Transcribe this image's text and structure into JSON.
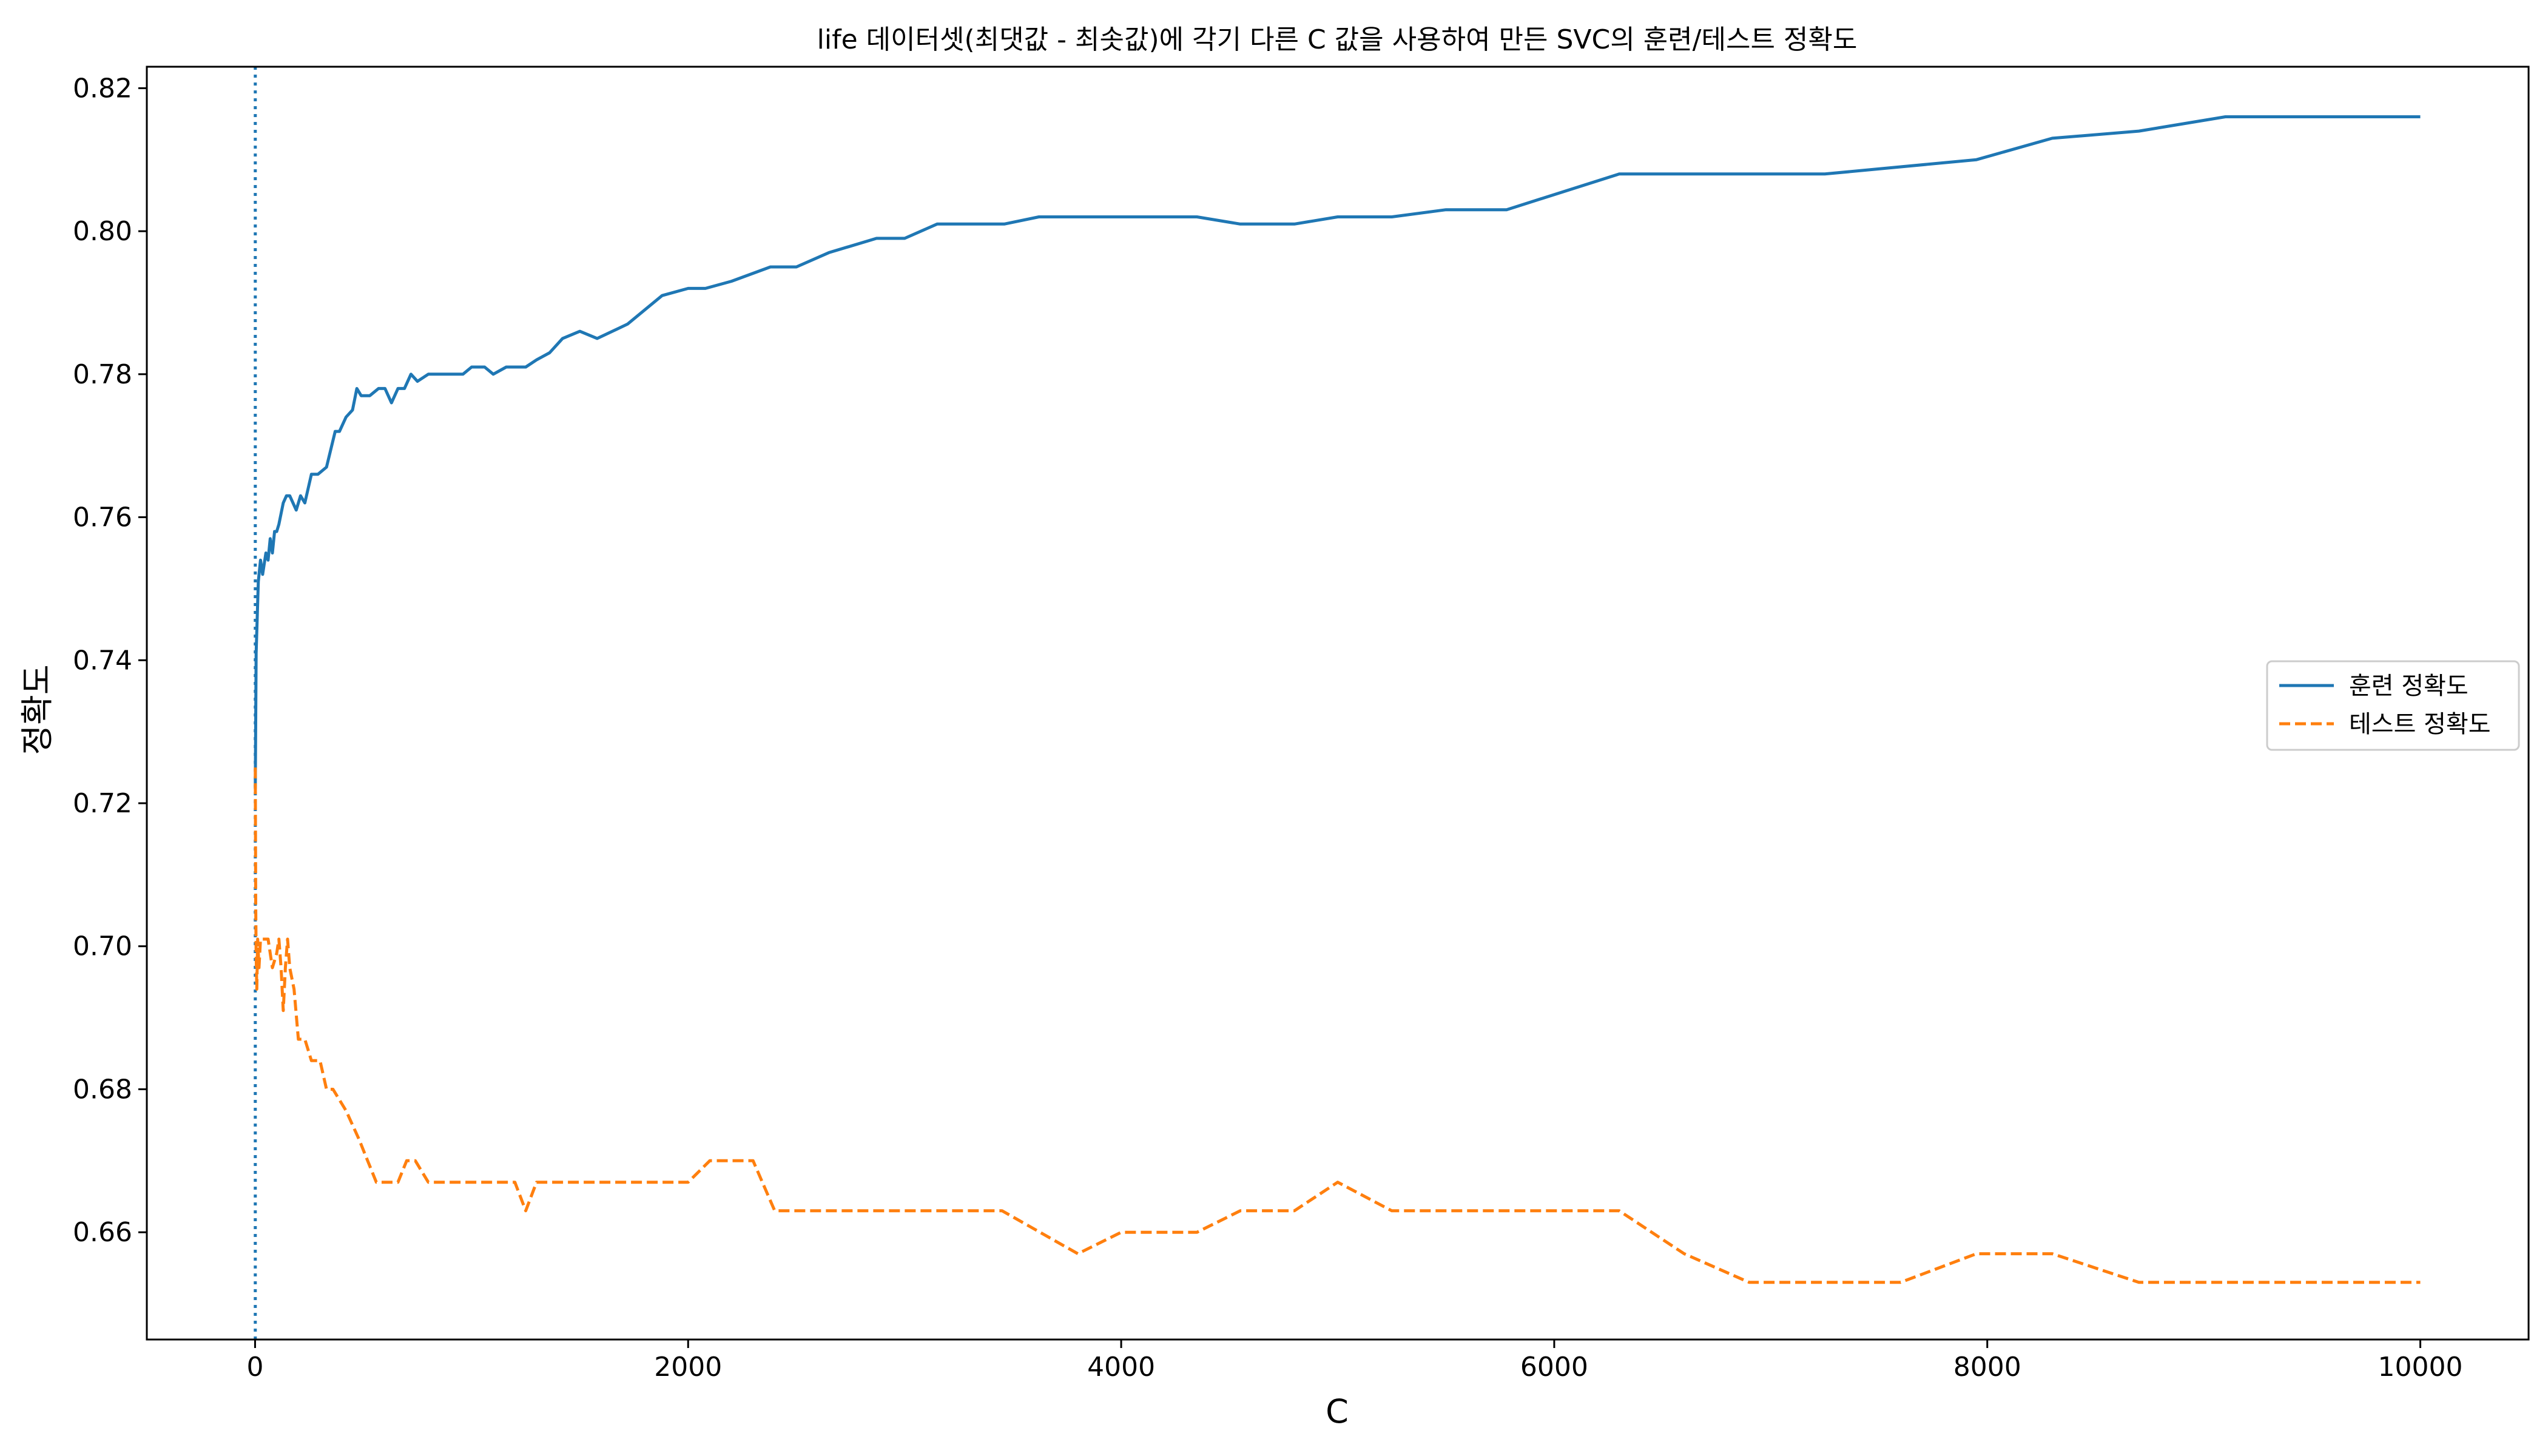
{
  "chart_data": {
    "type": "line",
    "title": "life 데이터셋(최댓값 - 최솟값)에 각기 다른 C 값을 사용하여 만든 SVC의 훈련/테스트 정확도",
    "xlabel": "C",
    "ylabel": "정확도",
    "xlim": [
      -500,
      10500
    ],
    "ylim": [
      0.645,
      0.823
    ],
    "xticks": [
      0,
      2000,
      4000,
      6000,
      8000,
      10000
    ],
    "xtick_labels": [
      "0",
      "2000",
      "4000",
      "6000",
      "8000",
      "10000"
    ],
    "yticks": [
      0.66,
      0.68,
      0.7,
      0.72,
      0.74,
      0.76,
      0.78,
      0.8,
      0.82
    ],
    "ytick_labels": [
      "0.66",
      "0.68",
      "0.70",
      "0.72",
      "0.74",
      "0.76",
      "0.78",
      "0.80",
      "0.82"
    ],
    "grid": false,
    "legend_position": "center-right",
    "vline": {
      "x": 1,
      "color": "#1f77b4",
      "style": "dotted"
    },
    "series": [
      {
        "name": "훈련 정확도",
        "color": "#1f77b4",
        "style": "solid",
        "x": [
          1,
          5,
          10,
          15,
          25,
          35,
          50,
          60,
          70,
          80,
          90,
          100,
          110,
          130,
          145,
          160,
          190,
          210,
          230,
          260,
          290,
          330,
          370,
          390,
          420,
          450,
          470,
          490,
          530,
          570,
          600,
          630,
          660,
          690,
          720,
          750,
          800,
          860,
          960,
          1000,
          1060,
          1100,
          1160,
          1250,
          1300,
          1360,
          1420,
          1500,
          1580,
          1720,
          1800,
          1880,
          2000,
          2080,
          2200,
          2380,
          2500,
          2650,
          2870,
          3000,
          3150,
          3460,
          3620,
          3900,
          4350,
          4550,
          4800,
          5000,
          5250,
          5500,
          5780,
          6300,
          6700,
          7250,
          7950,
          8300,
          8700,
          9100,
          9550,
          10000
        ],
        "y": [
          0.722,
          0.741,
          0.746,
          0.751,
          0.754,
          0.752,
          0.755,
          0.754,
          0.757,
          0.755,
          0.758,
          0.758,
          0.759,
          0.762,
          0.763,
          0.763,
          0.761,
          0.763,
          0.762,
          0.766,
          0.766,
          0.767,
          0.772,
          0.772,
          0.774,
          0.775,
          0.778,
          0.777,
          0.777,
          0.778,
          0.778,
          0.776,
          0.778,
          0.778,
          0.78,
          0.779,
          0.78,
          0.78,
          0.78,
          0.781,
          0.781,
          0.78,
          0.781,
          0.781,
          0.782,
          0.783,
          0.785,
          0.786,
          0.785,
          0.787,
          0.789,
          0.791,
          0.792,
          0.792,
          0.793,
          0.795,
          0.795,
          0.797,
          0.799,
          0.799,
          0.801,
          0.801,
          0.802,
          0.802,
          0.802,
          0.801,
          0.801,
          0.802,
          0.802,
          0.803,
          0.803,
          0.808,
          0.808,
          0.808,
          0.81,
          0.813,
          0.814,
          0.816,
          0.816,
          0.816
        ]
      },
      {
        "name": "테스트 정확도",
        "color": "#ff7f0e",
        "style": "dashed",
        "x": [
          1,
          3,
          5,
          8,
          12,
          18,
          25,
          40,
          60,
          80,
          100,
          110,
          120,
          130,
          140,
          150,
          160,
          180,
          200,
          230,
          260,
          300,
          330,
          360,
          420,
          480,
          520,
          560,
          620,
          660,
          700,
          740,
          800,
          900,
          1000,
          1100,
          1200,
          1250,
          1300,
          1350,
          1500,
          1700,
          1900,
          2000,
          2100,
          2300,
          2400,
          2600,
          3000,
          3450,
          3800,
          4000,
          4350,
          4550,
          4800,
          5000,
          5250,
          5500,
          6000,
          6300,
          6600,
          6900,
          7250,
          7600,
          7950,
          8300,
          8700,
          9000,
          9500,
          10000
        ],
        "y": [
          0.725,
          0.706,
          0.699,
          0.694,
          0.701,
          0.697,
          0.701,
          0.701,
          0.701,
          0.697,
          0.699,
          0.701,
          0.697,
          0.691,
          0.697,
          0.701,
          0.697,
          0.694,
          0.687,
          0.687,
          0.684,
          0.684,
          0.68,
          0.68,
          0.677,
          0.673,
          0.67,
          0.667,
          0.667,
          0.667,
          0.67,
          0.67,
          0.667,
          0.667,
          0.667,
          0.667,
          0.667,
          0.663,
          0.667,
          0.667,
          0.667,
          0.667,
          0.667,
          0.667,
          0.67,
          0.67,
          0.663,
          0.663,
          0.663,
          0.663,
          0.657,
          0.66,
          0.66,
          0.663,
          0.663,
          0.667,
          0.663,
          0.663,
          0.663,
          0.663,
          0.657,
          0.653,
          0.653,
          0.653,
          0.657,
          0.657,
          0.653,
          0.653,
          0.653,
          0.653
        ]
      }
    ]
  }
}
